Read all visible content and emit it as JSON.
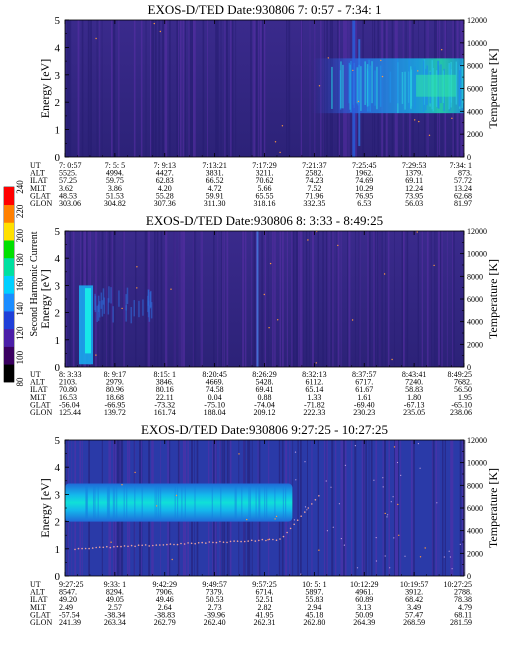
{
  "colorbar": {
    "label": "Second Harmonic Current",
    "ticks": [
      "240",
      "220",
      "200",
      "180",
      "160",
      "140",
      "120",
      "100",
      "80"
    ],
    "colors": [
      "#000000",
      "#3a0060",
      "#4b1ea8",
      "#1f3fd8",
      "#1a8cff",
      "#00d0ff",
      "#00e0a0",
      "#00e000",
      "#ffe000",
      "#ff8000",
      "#ff0000"
    ]
  },
  "chart_data": [
    {
      "type": "heatmap",
      "title": "EXOS-D/TED   Date:930806  7: 0:57 - 7:34: 1",
      "ylabel": "Energy [eV]",
      "y2label": "Temperature [K]",
      "ylim": [
        0,
        5
      ],
      "yticks": [
        "0",
        "1",
        "2",
        "3",
        "4",
        "5"
      ],
      "y2lim": [
        0,
        12000
      ],
      "y2ticks": [
        "0",
        "2000",
        "4000",
        "6000",
        "8000",
        "10000",
        "12000"
      ],
      "row_labels": [
        "UT",
        "ALT",
        "ILAT",
        "MLT",
        "GLAT",
        "GLON"
      ],
      "columns": [
        [
          "7: 0:57",
          "5525.",
          "57.25",
          "3.62",
          "48.53",
          "303.06"
        ],
        [
          "7: 5: 5",
          "4994.",
          "59.75",
          "3.86",
          "51.53",
          "304.82"
        ],
        [
          "7: 9:13",
          "4427.",
          "62.83",
          "4.20",
          "55.28",
          "307.36"
        ],
        [
          "7:13:21",
          "3831.",
          "66.52",
          "4.72",
          "59.91",
          "311.30"
        ],
        [
          "7:17:29",
          "3211.",
          "70.62",
          "5.66",
          "65.55",
          "318.16"
        ],
        [
          "7:21:37",
          "2582.",
          "74.23",
          "7.52",
          "71.96",
          "332.35"
        ],
        [
          "7:25:45",
          "1962.",
          "74.69",
          "10.29",
          "76.95",
          "6.53"
        ],
        [
          "7:29:53",
          "1379.",
          "69.11",
          "12.24",
          "73.95",
          "56.03"
        ],
        [
          "7:34: 1",
          "873.",
          "57.72",
          "13.24",
          "62.68",
          "81.97"
        ]
      ]
    },
    {
      "type": "heatmap",
      "title": "EXOS-D/TED   Date:930806  8: 3:33 - 8:49:25",
      "ylabel": "Energy [eV]",
      "y2label": "Temperature [K]",
      "ylim": [
        0,
        5
      ],
      "yticks": [
        "0",
        "1",
        "2",
        "3",
        "4",
        "5"
      ],
      "y2lim": [
        0,
        12000
      ],
      "y2ticks": [
        "0",
        "2000",
        "4000",
        "6000",
        "8000",
        "10000",
        "12000"
      ],
      "row_labels": [
        "UT",
        "ALT",
        "ILAT",
        "MLT",
        "GLAT",
        "GLON"
      ],
      "columns": [
        [
          "8: 3:33",
          "2103.",
          "70.80",
          "16.53",
          "-56.04",
          "125.44"
        ],
        [
          "8: 9:17",
          "2979.",
          "80.96",
          "18.68",
          "-66.95",
          "139.72"
        ],
        [
          "8:15: 1",
          "3846.",
          "80.16",
          "22.11",
          "-73.32",
          "161.74"
        ],
        [
          "8:20:45",
          "4669.",
          "74.58",
          "0.04",
          "-75.10",
          "188.04"
        ],
        [
          "8:26:29",
          "5428.",
          "69.41",
          "0.88",
          "-74.04",
          "209.12"
        ],
        [
          "8:32:13",
          "6112.",
          "65.14",
          "1.33",
          "-71.82",
          "222.33"
        ],
        [
          "8:37:57",
          "6717.",
          "61.67",
          "1.61",
          "-69.40",
          "230.23"
        ],
        [
          "8:43:41",
          "7240.",
          "58.83",
          "1.80",
          "-67.13",
          "235.05"
        ],
        [
          "8:49:25",
          "7682.",
          "56.50",
          "1.95",
          "-65.10",
          "238.06"
        ]
      ]
    },
    {
      "type": "heatmap",
      "title": "EXOS-D/TED   Date:930806  9:27:25 - 10:27:25",
      "ylabel": "Energy [eV]",
      "y2label": "Temperature [K]",
      "ylim": [
        0,
        5
      ],
      "yticks": [
        "0",
        "1",
        "2",
        "3",
        "4",
        "5"
      ],
      "y2lim": [
        0,
        12000
      ],
      "y2ticks": [
        "0",
        "2000",
        "4000",
        "6000",
        "8000",
        "10000",
        "12000"
      ],
      "row_labels": [
        "UT",
        "ALT",
        "ILAT",
        "MLT",
        "GLAT",
        "GLON"
      ],
      "columns": [
        [
          "9:27:25",
          "8547.",
          "49.20",
          "2.49",
          "-57.54",
          "241.39"
        ],
        [
          "9:33: 1",
          "8294.",
          "49.05",
          "2.57",
          "-38.34",
          "263.34"
        ],
        [
          "9:42:29",
          "7906.",
          "49.46",
          "2.64",
          "-38.83",
          "262.79"
        ],
        [
          "9:49:57",
          "7379.",
          "50.53",
          "2.73",
          "-39.96",
          "262.40"
        ],
        [
          "9:57:25",
          "6714.",
          "52.51",
          "2.82",
          "41.95",
          "262.31"
        ],
        [
          "10: 5: 1",
          "5897.",
          "55.83",
          "2.94",
          "45.18",
          "262.80"
        ],
        [
          "10:12:29",
          "4961.",
          "60.89",
          "3.13",
          "50.09",
          "264.39"
        ],
        [
          "10:19:57",
          "3912.",
          "68.42",
          "3.49",
          "57.47",
          "268.59"
        ],
        [
          "10:27:25",
          "2788.",
          "78.38",
          "4.79",
          "68.11",
          "281.59"
        ]
      ]
    }
  ]
}
